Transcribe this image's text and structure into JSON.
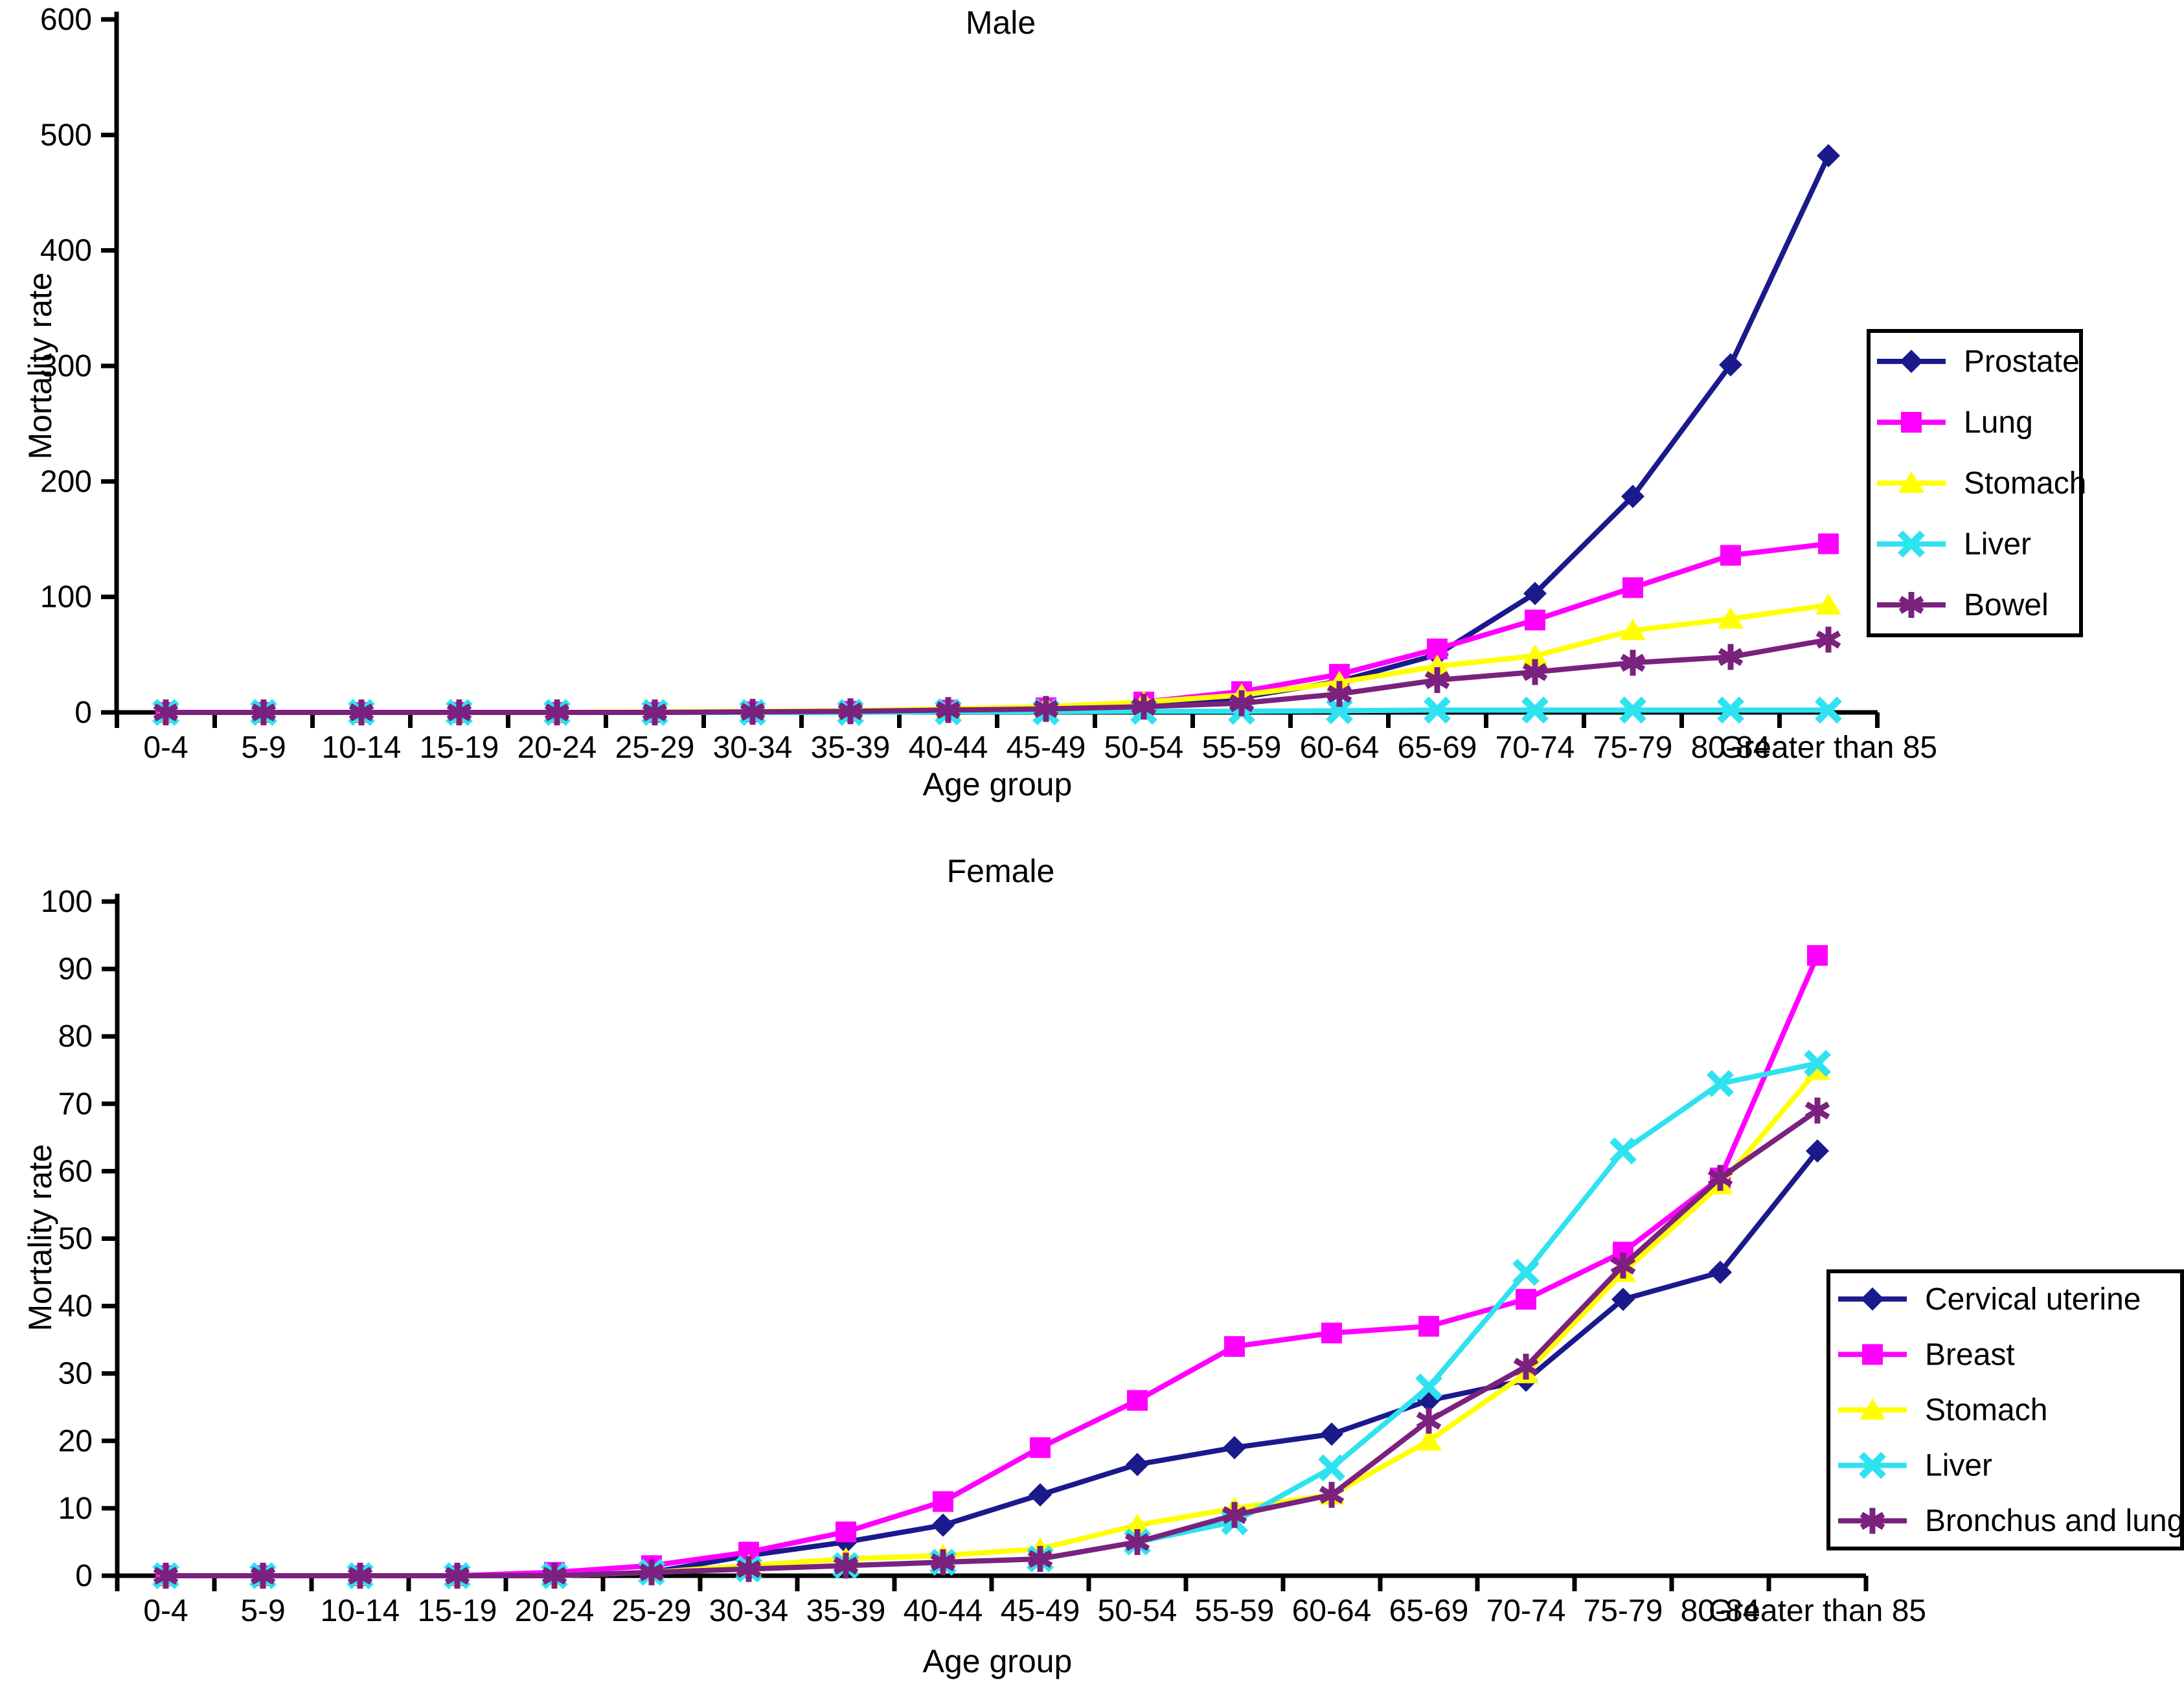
{
  "chart_data": [
    {
      "type": "line",
      "title": "Male",
      "xlabel": "Age group",
      "ylabel": "Mortality rate",
      "ylim": [
        0,
        600
      ],
      "ytick_step": 100,
      "grid": false,
      "legend_position": "right",
      "categories": [
        "0-4",
        "5-9",
        "10-14",
        "15-19",
        "20-24",
        "25-29",
        "30-34",
        "35-39",
        "40-44",
        "45-49",
        "50-54",
        "55-59",
        "60-64",
        "65-69",
        "70-74",
        "75-79",
        "80-84",
        "Greater than 85"
      ],
      "series": [
        {
          "name": "Prostate",
          "color": "#1a1a8c",
          "marker": "diamond",
          "values": [
            0,
            0,
            0,
            0,
            0,
            0,
            0,
            0.5,
            1,
            2,
            6,
            13,
            27,
            50,
            103,
            187,
            301,
            482
          ]
        },
        {
          "name": "Lung",
          "color": "#ff00ff",
          "marker": "square",
          "values": [
            0,
            0,
            0,
            0,
            0,
            0,
            0.5,
            1,
            2,
            4,
            9,
            18,
            33,
            55,
            80,
            108,
            136,
            146
          ]
        },
        {
          "name": "Stomach",
          "color": "#ffff00",
          "marker": "triangle",
          "values": [
            0,
            0,
            0,
            0,
            0,
            0.5,
            1,
            1.5,
            3,
            5,
            9,
            15,
            26,
            40,
            49,
            71,
            81,
            93
          ]
        },
        {
          "name": "Liver",
          "color": "#2fe2f0",
          "marker": "x",
          "values": [
            0,
            0,
            0,
            0,
            0,
            0,
            0,
            0,
            0.5,
            0.5,
            1,
            1,
            1.5,
            2,
            2,
            2,
            2,
            2
          ]
        },
        {
          "name": "Bowel",
          "color": "#7b217e",
          "marker": "star",
          "values": [
            0,
            0,
            0,
            0,
            0,
            0,
            0.5,
            1,
            2,
            3,
            5,
            8,
            16,
            28,
            35,
            43,
            48,
            63
          ]
        }
      ]
    },
    {
      "type": "line",
      "title": "Female",
      "xlabel": "Age group",
      "ylabel": "Mortality rate",
      "ylim": [
        0,
        100
      ],
      "ytick_step": 10,
      "grid": false,
      "legend_position": "right",
      "categories": [
        "0-4",
        "5-9",
        "10-14",
        "15-19",
        "20-24",
        "25-29",
        "30-34",
        "35-39",
        "40-44",
        "45-49",
        "50-54",
        "55-59",
        "60-64",
        "65-69",
        "70-74",
        "75-79",
        "80-84",
        "Greater than 85"
      ],
      "series": [
        {
          "name": "Cervical uterine",
          "color": "#1a1a8c",
          "marker": "diamond",
          "values": [
            0,
            0,
            0,
            0,
            0,
            0.5,
            3,
            5,
            7.5,
            12,
            16.5,
            19,
            21,
            26,
            29,
            41,
            45,
            63
          ]
        },
        {
          "name": "Breast",
          "color": "#ff00ff",
          "marker": "square",
          "values": [
            0,
            0,
            0,
            0,
            0.5,
            1.5,
            3.5,
            6.5,
            11,
            19,
            26,
            34,
            36,
            37,
            41,
            48,
            59,
            92
          ]
        },
        {
          "name": "Stomach",
          "color": "#ffff00",
          "marker": "triangle",
          "values": [
            0,
            0,
            0,
            0,
            0,
            0.5,
            1.5,
            2.5,
            3,
            4,
            7.5,
            10,
            12,
            20,
            30,
            45,
            58,
            75
          ]
        },
        {
          "name": "Liver",
          "color": "#2fe2f0",
          "marker": "x",
          "values": [
            0,
            0,
            0,
            0,
            0,
            0.5,
            1,
            1.5,
            2,
            2.5,
            5,
            8,
            16,
            28,
            45,
            63,
            73,
            76
          ]
        },
        {
          "name": "Bronchus and lung",
          "color": "#7b217e",
          "marker": "star",
          "values": [
            0,
            0,
            0,
            0,
            0,
            0.5,
            1,
            1.5,
            2,
            2.5,
            5,
            9,
            12,
            23,
            31,
            46,
            59,
            69
          ]
        }
      ]
    }
  ]
}
